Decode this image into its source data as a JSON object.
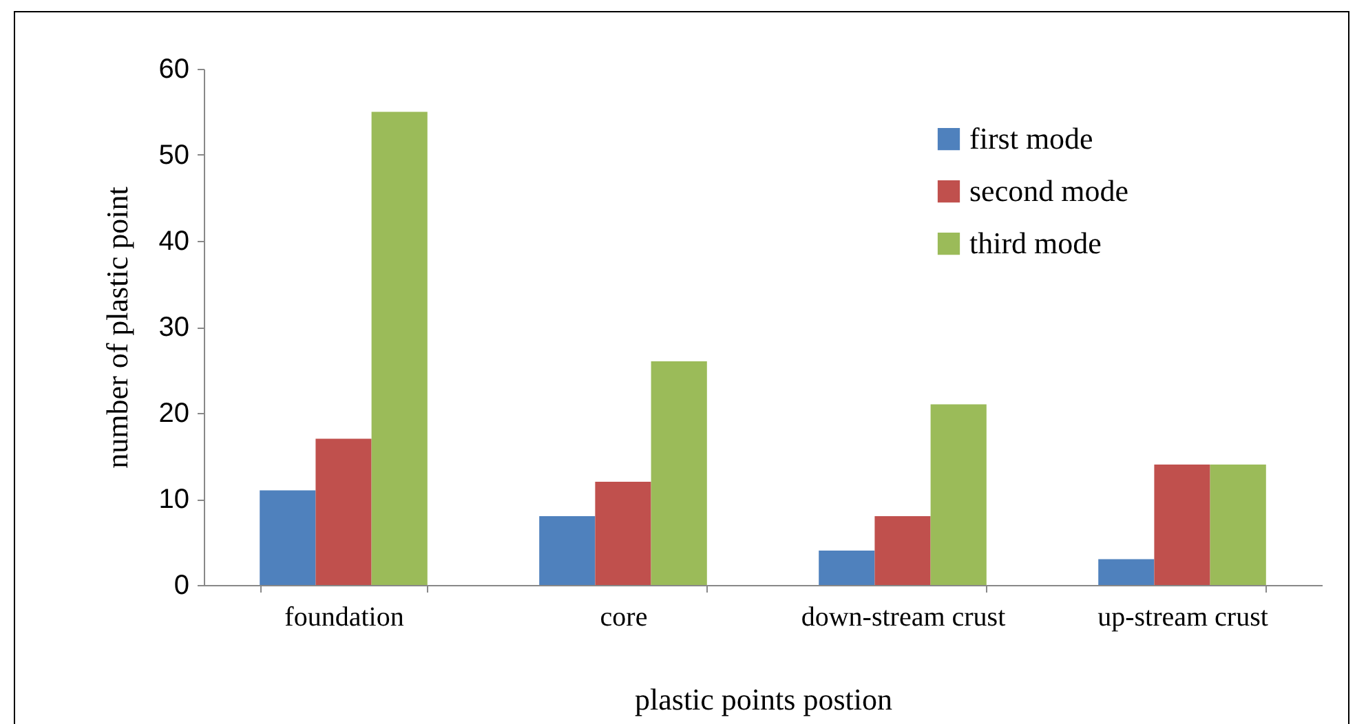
{
  "chart_data": {
    "type": "bar",
    "xlabel": "plastic points postion",
    "ylabel": "number of plastic point",
    "categories": [
      "foundation",
      "core",
      "down-stream crust",
      "up-stream crust"
    ],
    "series": [
      {
        "name": "first mode",
        "color": "#4f81bd",
        "values": [
          11,
          8,
          4,
          3
        ]
      },
      {
        "name": "second mode",
        "color": "#c0504d",
        "values": [
          17,
          12,
          8,
          14
        ]
      },
      {
        "name": "third mode",
        "color": "#9bbb59",
        "values": [
          55,
          26,
          21,
          14
        ]
      }
    ],
    "ylim": [
      0,
      60
    ],
    "yticks": [
      0,
      10,
      20,
      30,
      40,
      50,
      60
    ],
    "grid": false,
    "legend": "top right"
  }
}
